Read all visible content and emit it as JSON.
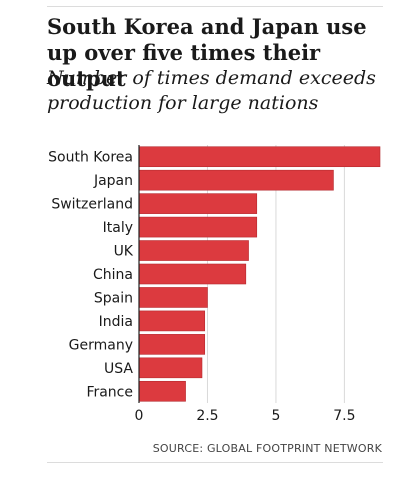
{
  "chart_data": {
    "type": "bar",
    "orientation": "horizontal",
    "title": "South Korea and Japan use up over five times their output",
    "subtitle": "Number of times demand exceeds production for large nations",
    "categories": [
      "South Korea",
      "Japan",
      "Switzerland",
      "Italy",
      "UK",
      "China",
      "Spain",
      "India",
      "Germany",
      "USA",
      "France"
    ],
    "values": [
      8.8,
      7.1,
      4.3,
      4.3,
      4.0,
      3.9,
      2.5,
      2.4,
      2.4,
      2.3,
      1.7
    ],
    "xticks": [
      0,
      2.5,
      5,
      7.5
    ],
    "xtick_labels": [
      "0",
      "2.5",
      "5",
      "7.5"
    ],
    "xlim": [
      0,
      8.8
    ],
    "bar_color": "#dc3a3f",
    "grid": true,
    "xlabel": "",
    "ylabel": ""
  },
  "source": "SOURCE: GLOBAL FOOTPRINT NETWORK"
}
